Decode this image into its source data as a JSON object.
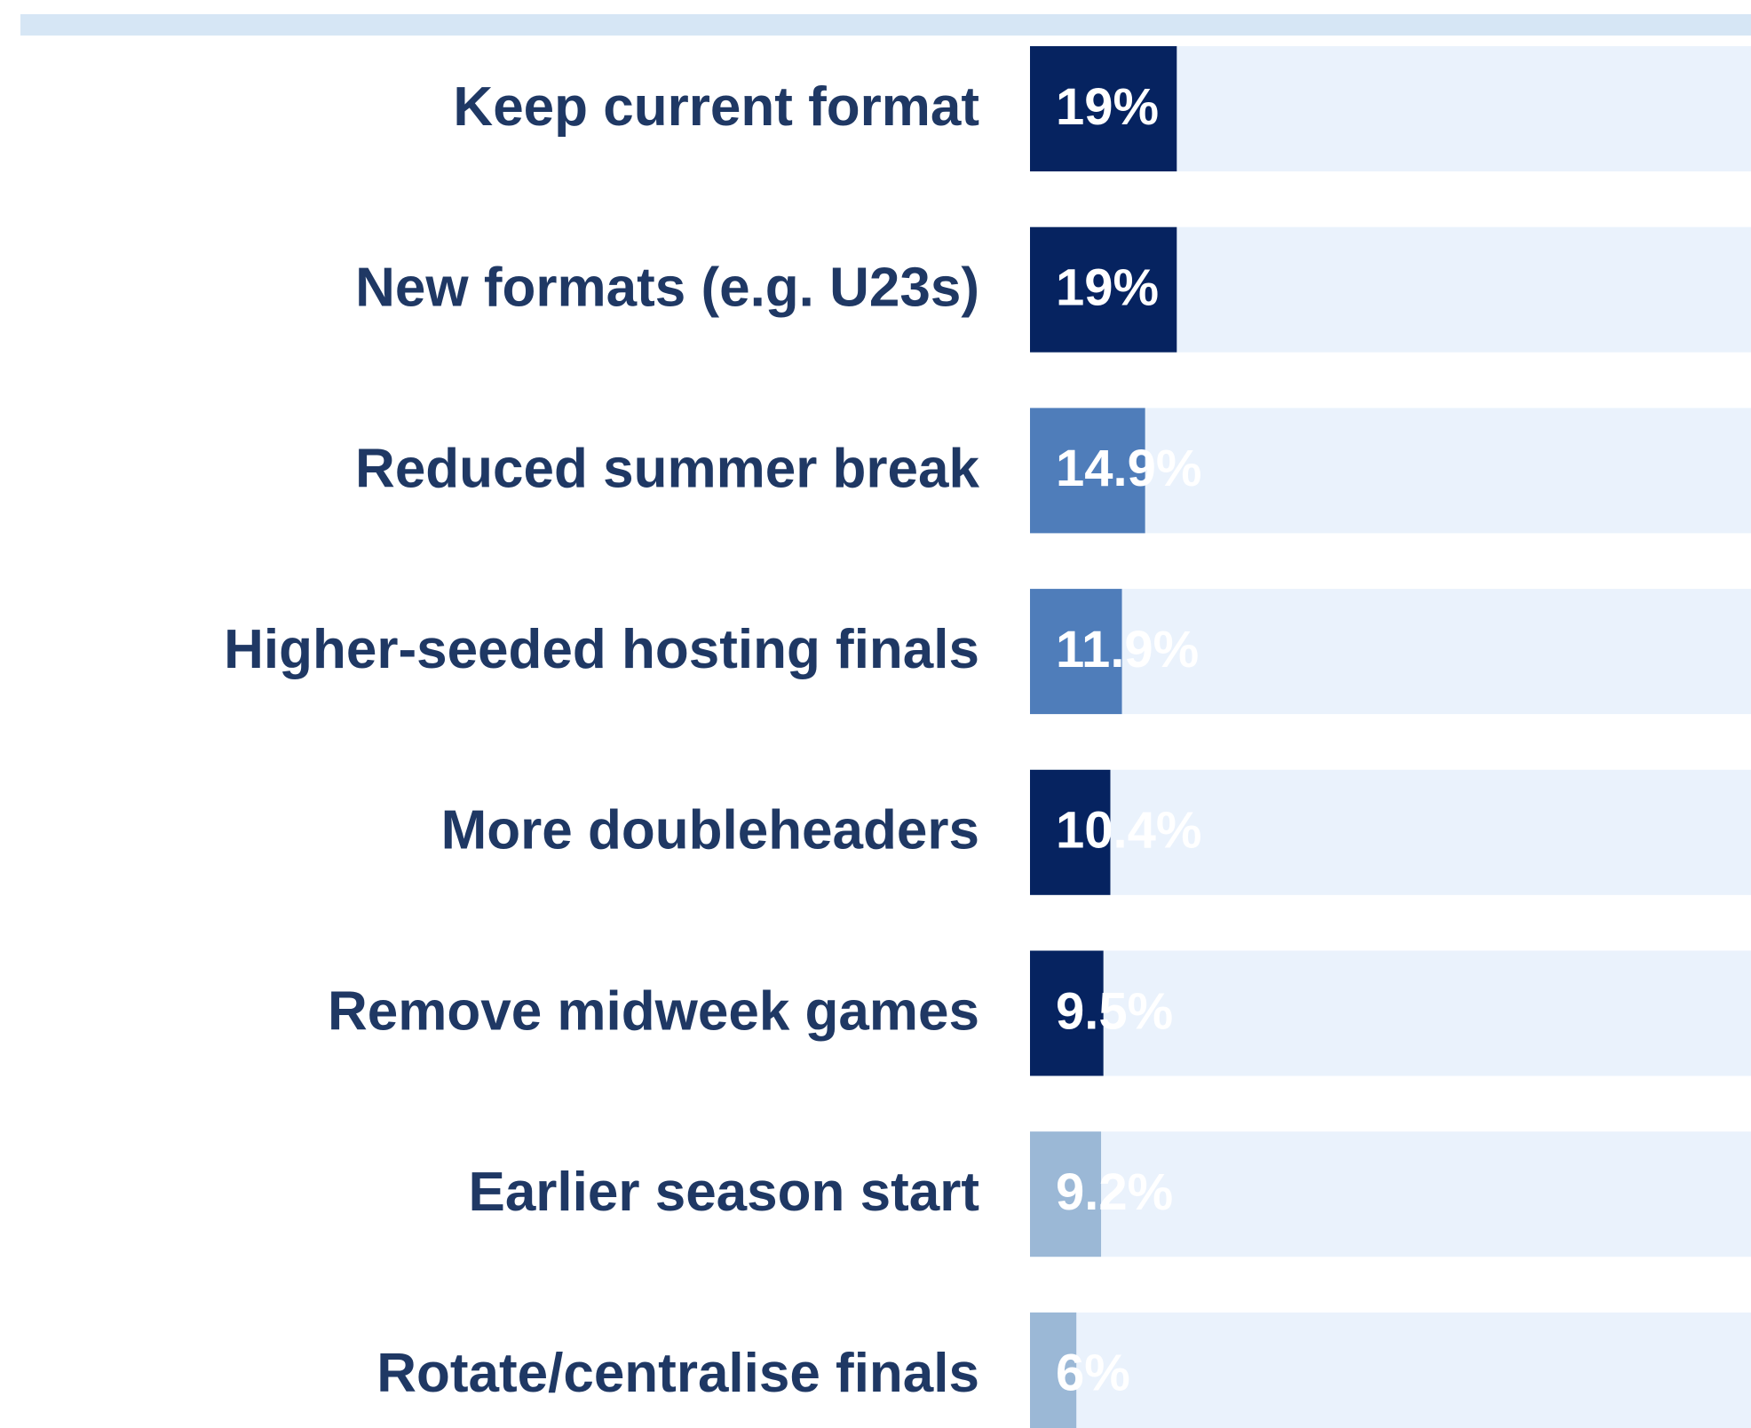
{
  "chart_data": {
    "type": "bar",
    "orientation": "horizontal",
    "categories": [
      "Keep current format",
      "New formats (e.g. U23s)",
      "Reduced summer break",
      "Higher-seeded hosting finals",
      "More doubleheaders",
      "Remove midweek games",
      "Earlier season start",
      "Rotate/centralise finals"
    ],
    "values": [
      19,
      19,
      14.9,
      11.9,
      10.4,
      9.5,
      9.2,
      6
    ],
    "value_labels": [
      "19%",
      "19%",
      "14.9%",
      "11.9%",
      "10.4%",
      "9.5%",
      "9.2%",
      "6%"
    ],
    "colors": [
      "#062360",
      "#062360",
      "#4f7dba",
      "#4f7dba",
      "#062360",
      "#062360",
      "#9bb8d6",
      "#9bb8d6"
    ],
    "track_color": "#eaf2fc"
  }
}
